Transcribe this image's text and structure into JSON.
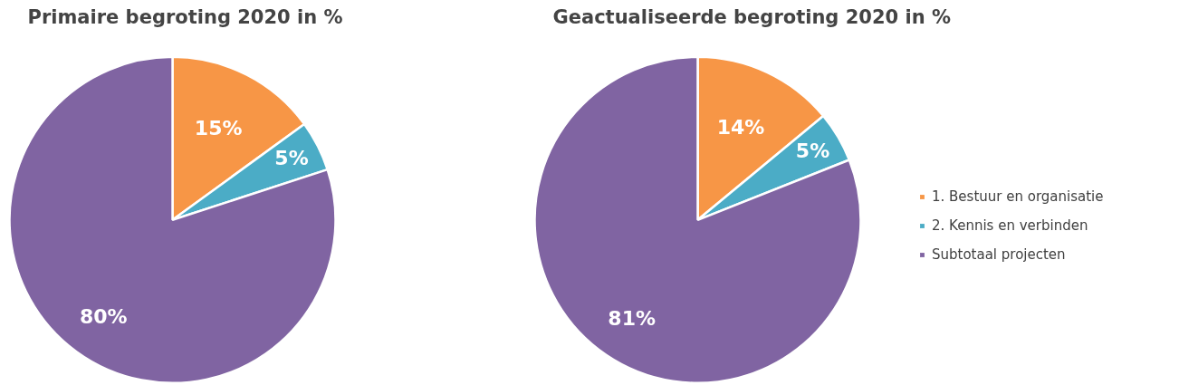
{
  "chart_data": [
    {
      "type": "pie",
      "title": "Primaire begroting 2020 in %",
      "categories": [
        "1. Bestuur en organisatie",
        "2. Kennis en verbinden",
        "Subtotaal projecten"
      ],
      "values": [
        15,
        5,
        80
      ],
      "colors": [
        "#f79646",
        "#4bacc6",
        "#8064a2"
      ],
      "value_labels": [
        "15%",
        "5%",
        "80%"
      ],
      "legend": "right"
    },
    {
      "type": "pie",
      "title": "Geactualiseerde begroting 2020 in %",
      "categories": [
        null,
        null,
        null
      ],
      "values": [
        14,
        5,
        81
      ],
      "colors": [
        "#f79646",
        "#4bacc6",
        "#8064a2"
      ],
      "value_labels": [
        "14%",
        "5%",
        "81%"
      ]
    }
  ]
}
